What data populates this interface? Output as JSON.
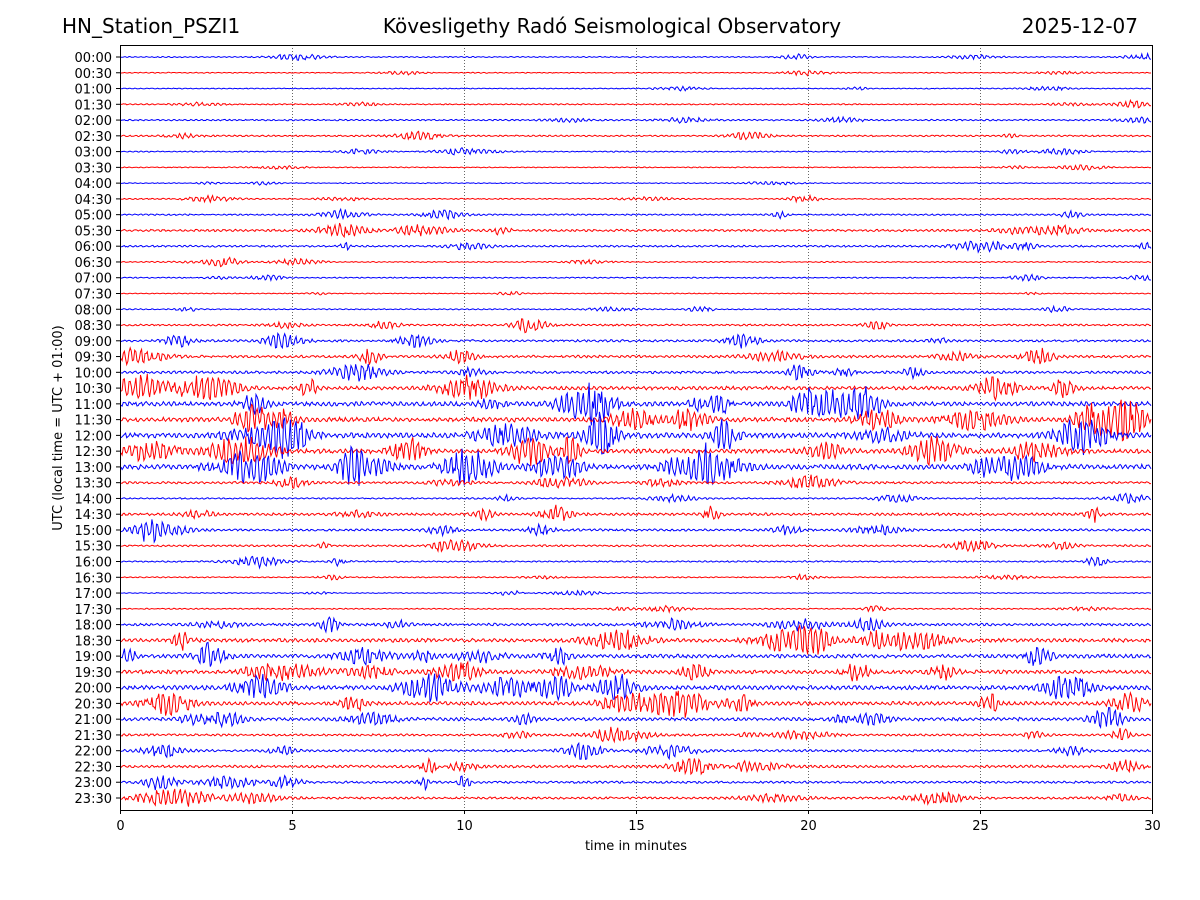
{
  "chart_data": {
    "type": "line",
    "title_left": "HN_Station_PSZI1",
    "title": "Kövesligethy Radó Seismological Observatory",
    "title_right": "2025-12-07",
    "xlabel": "time in minutes",
    "ylabel": "UTC (local time = UTC + 01:00)",
    "xlim": [
      0,
      30
    ],
    "xticks": [
      0,
      5,
      10,
      15,
      20,
      25,
      30
    ],
    "grid": "vertical-dotted",
    "colors": [
      "#0000ff",
      "#ff0000"
    ],
    "traces": [
      {
        "label": "00:00",
        "amplitude": 0.15
      },
      {
        "label": "00:30",
        "amplitude": 0.12
      },
      {
        "label": "01:00",
        "amplitude": 0.12
      },
      {
        "label": "01:30",
        "amplitude": 0.15
      },
      {
        "label": "02:00",
        "amplitude": 0.2
      },
      {
        "label": "02:30",
        "amplitude": 0.2
      },
      {
        "label": "03:00",
        "amplitude": 0.15
      },
      {
        "label": "03:30",
        "amplitude": 0.12
      },
      {
        "label": "04:00",
        "amplitude": 0.12
      },
      {
        "label": "04:30",
        "amplitude": 0.15
      },
      {
        "label": "05:00",
        "amplitude": 0.2
      },
      {
        "label": "05:30",
        "amplitude": 0.3
      },
      {
        "label": "06:00",
        "amplitude": 0.25
      },
      {
        "label": "06:30",
        "amplitude": 0.15
      },
      {
        "label": "07:00",
        "amplitude": 0.15
      },
      {
        "label": "07:30",
        "amplitude": 0.12
      },
      {
        "label": "08:00",
        "amplitude": 0.15
      },
      {
        "label": "08:30",
        "amplitude": 0.25
      },
      {
        "label": "09:00",
        "amplitude": 0.3
      },
      {
        "label": "09:30",
        "amplitude": 0.35
      },
      {
        "label": "10:00",
        "amplitude": 0.35
      },
      {
        "label": "10:30",
        "amplitude": 0.5
      },
      {
        "label": "11:00",
        "amplitude": 0.6
      },
      {
        "label": "11:30",
        "amplitude": 0.6
      },
      {
        "label": "12:00",
        "amplitude": 0.7
      },
      {
        "label": "12:30",
        "amplitude": 0.6
      },
      {
        "label": "13:00",
        "amplitude": 0.7
      },
      {
        "label": "13:30",
        "amplitude": 0.3
      },
      {
        "label": "14:00",
        "amplitude": 0.2
      },
      {
        "label": "14:30",
        "amplitude": 0.35
      },
      {
        "label": "15:00",
        "amplitude": 0.3
      },
      {
        "label": "15:30",
        "amplitude": 0.25
      },
      {
        "label": "16:00",
        "amplitude": 0.2
      },
      {
        "label": "16:30",
        "amplitude": 0.15
      },
      {
        "label": "17:00",
        "amplitude": 0.12
      },
      {
        "label": "17:30",
        "amplitude": 0.15
      },
      {
        "label": "18:00",
        "amplitude": 0.35
      },
      {
        "label": "18:30",
        "amplitude": 0.5
      },
      {
        "label": "19:00",
        "amplitude": 0.5
      },
      {
        "label": "19:30",
        "amplitude": 0.5
      },
      {
        "label": "20:00",
        "amplitude": 0.6
      },
      {
        "label": "20:30",
        "amplitude": 0.5
      },
      {
        "label": "21:00",
        "amplitude": 0.45
      },
      {
        "label": "21:30",
        "amplitude": 0.3
      },
      {
        "label": "22:00",
        "amplitude": 0.3
      },
      {
        "label": "22:30",
        "amplitude": 0.35
      },
      {
        "label": "23:00",
        "amplitude": 0.3
      },
      {
        "label": "23:30",
        "amplitude": 0.3
      }
    ]
  }
}
